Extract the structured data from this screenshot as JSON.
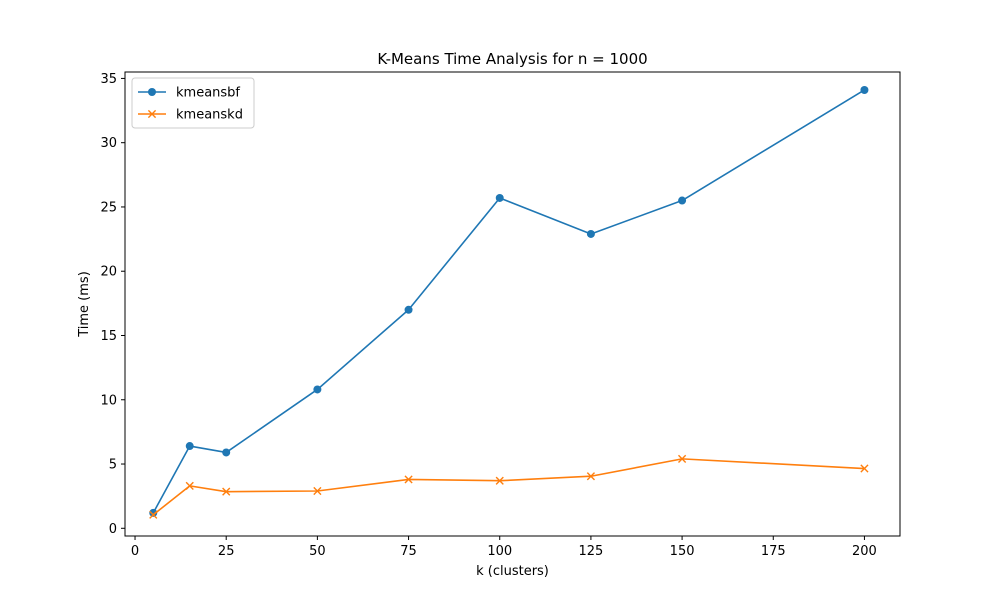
{
  "chart_data": {
    "type": "line",
    "title": "K-Means Time Analysis for n = 1000",
    "xlabel": "k (clusters)",
    "ylabel": "Time (ms)",
    "xlim": [
      -2.75,
      209.75
    ],
    "ylim": [
      -0.6,
      35.5
    ],
    "xticks": [
      0,
      25,
      50,
      75,
      100,
      125,
      150,
      175,
      200
    ],
    "yticks": [
      0,
      5,
      10,
      15,
      20,
      25,
      30,
      35
    ],
    "grid": false,
    "legend_position": "top-left",
    "x": [
      5,
      15,
      25,
      50,
      75,
      100,
      125,
      150,
      200
    ],
    "series": [
      {
        "name": "kmeansbf",
        "color": "#1f77b4",
        "marker": "circle",
        "values": [
          1.2,
          6.4,
          5.9,
          10.8,
          17.0,
          25.7,
          22.9,
          25.5,
          34.1
        ]
      },
      {
        "name": "kmeanskd",
        "color": "#ff7f0e",
        "marker": "x",
        "values": [
          1.05,
          3.3,
          2.85,
          2.9,
          3.8,
          3.7,
          4.05,
          5.4,
          4.65
        ]
      }
    ]
  }
}
